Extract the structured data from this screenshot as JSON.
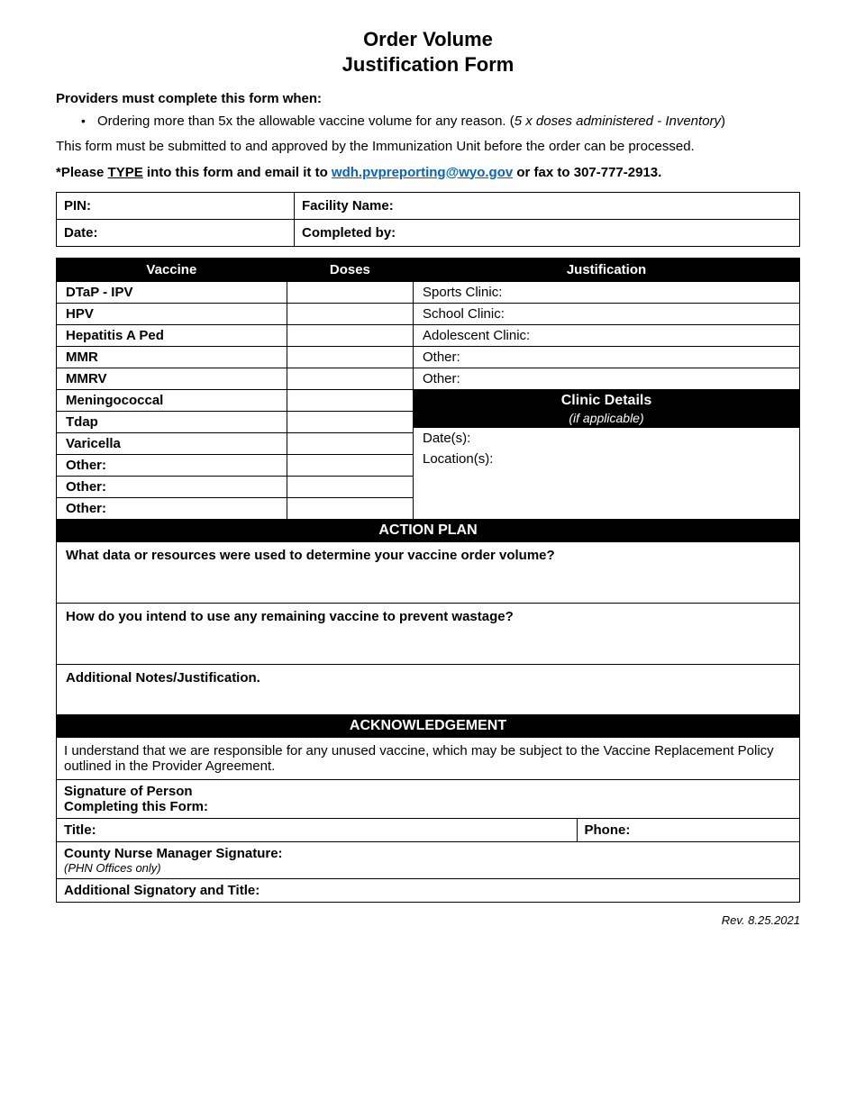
{
  "title": {
    "line1": "Order Volume",
    "line2": "Justification Form"
  },
  "intro": {
    "lead": "Providers must complete this form when:",
    "bullet_main": "Ordering more than 5x the allowable vaccine volume for any reason. (",
    "bullet_formula": "5 x doses administered -  Inventory",
    "bullet_close": ")",
    "submit_line": "This form must be submitted to and approved by the Immunization Unit before the order can be processed.",
    "type_prefix": "*Please ",
    "type_word": "TYPE",
    "type_mid": " into this form and email it to ",
    "email": "wdh.pvpreporting@wyo.gov",
    "type_suffix": " or fax to 307-777-2913."
  },
  "info": {
    "pin": "PIN:",
    "facility": "Facility Name:",
    "date": "Date:",
    "completed": "Completed by:"
  },
  "headers": {
    "vaccine": "Vaccine",
    "doses": "Doses",
    "justification": "Justification"
  },
  "vaccines": {
    "r0": "DTaP - IPV",
    "r1": "HPV",
    "r2": "Hepatitis A Ped",
    "r3": "MMR",
    "r4": "MMRV",
    "r5": "Meningococcal",
    "r6": "Tdap",
    "r7": "Varicella",
    "r8": "Other:",
    "r9": "Other:",
    "r10": "Other:"
  },
  "just": {
    "sports": "Sports Clinic:",
    "school": "School Clinic:",
    "adolescent": "Adolescent Clinic:",
    "other1": "Other:",
    "other2": "Other:"
  },
  "clinic": {
    "title": "Clinic Details",
    "sub": "(if applicable)",
    "dates": "Date(s):",
    "locations": "Location(s):"
  },
  "action": {
    "title": "ACTION PLAN",
    "q1": "What data or resources were used to determine your vaccine order volume?",
    "q2": "How do you intend to use any remaining vaccine to prevent wastage?",
    "q3": "Additional Notes/Justification."
  },
  "ack": {
    "title": "ACKNOWLEDGEMENT",
    "text": "I understand that we are responsible for any unused vaccine, which may be subject to the Vaccine Replacement Policy outlined in the Provider Agreement."
  },
  "sig": {
    "line1": "Signature of Person",
    "line1b": "Completing this Form:",
    "title": "Title:",
    "phone": "Phone:",
    "cnm": "County Nurse Manager Signature:",
    "cnm_sub": "(PHN Offices only)",
    "addl": "Additional Signatory and Title:"
  },
  "rev": "Rev. 8.25.2021"
}
